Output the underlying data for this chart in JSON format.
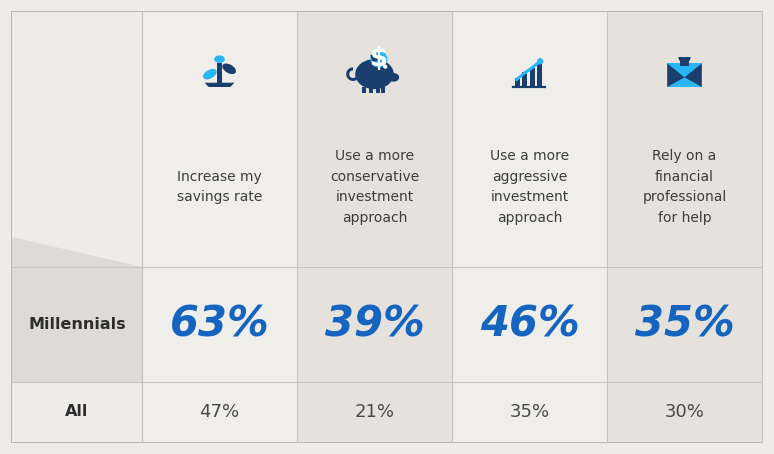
{
  "categories": [
    "Increase my\nsavings rate",
    "Use a more\nconservative\ninvestment\napproach",
    "Use a more\naggressive\ninvestment\napproach",
    "Rely on a\nfinancial\nprofessional\nfor help"
  ],
  "millennial_values": [
    "63%",
    "39%",
    "46%",
    "35%"
  ],
  "all_values": [
    "47%",
    "21%",
    "35%",
    "30%"
  ],
  "row_labels": [
    "Millennials",
    "All"
  ],
  "bg_light": "#eeece9",
  "bg_dark": "#e2dfdb",
  "col_light": "#f0eeeb",
  "col_dark": "#e5e2de",
  "dark_blue": "#1a4f8a",
  "bright_blue": "#1565c0",
  "cyan_blue": "#1e88e5",
  "icon_dark_blue": "#1a3f6f",
  "icon_mid_blue": "#1565c0",
  "icon_light_blue": "#29b6f6",
  "header_text_color": "#3d3d3d",
  "millennials_value_color": "#1565c0",
  "all_value_color": "#4a4a4a",
  "row_label_color": "#2d2d2d",
  "divider_color": "#c8c4bf",
  "outer_border_color": "#b0acA8",
  "left_panel_bg": "#e8e5e1",
  "left_angled_bg": "#dedad5"
}
